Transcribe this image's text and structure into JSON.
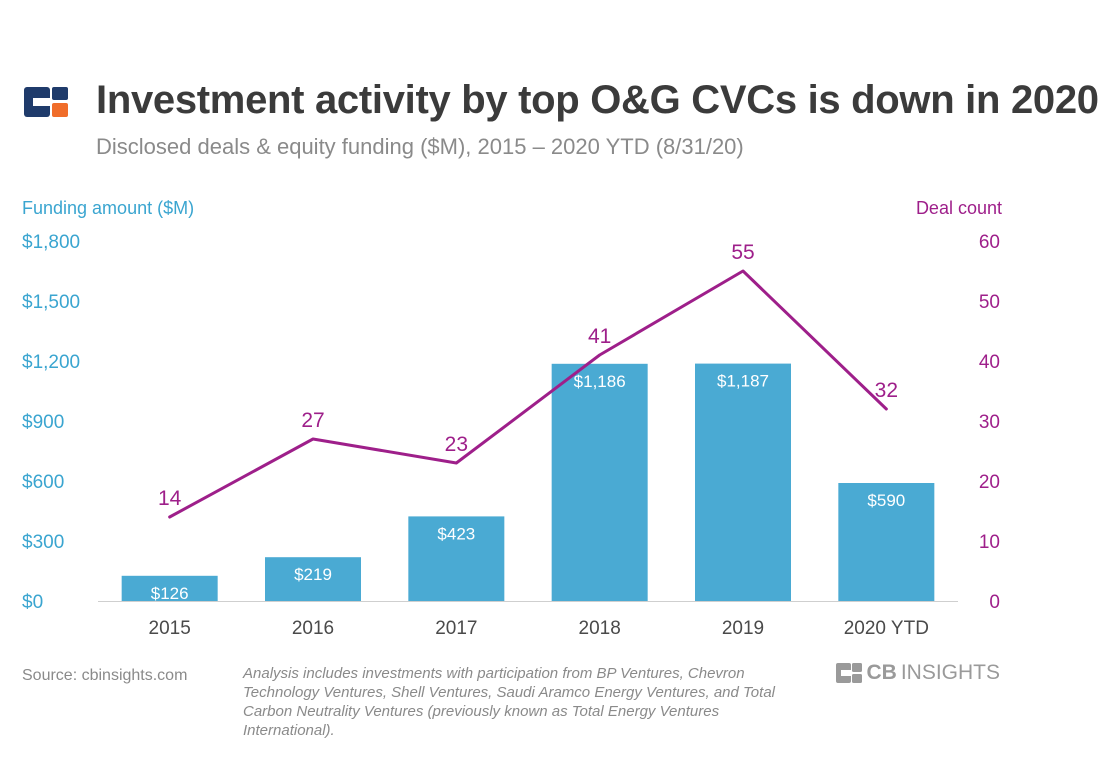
{
  "header": {
    "title": "Investment activity by top O&G CVCs is down in 2020",
    "subtitle": "Disclosed deals & equity funding ($M), 2015 – 2020 YTD (8/31/20)"
  },
  "footer": {
    "source": "Source: cbinsights.com",
    "note": "Analysis includes investments with participation from BP Ventures, Chevron Technology Ventures, Shell Ventures, Saudi Aramco Energy Ventures, and Total Carbon Neutrality Ventures (previously known as Total Energy Ventures International).",
    "brand_cb": "CB",
    "brand_insights": "INSIGHTS"
  },
  "colors": {
    "bar": "#4aaad3",
    "line": "#9e1f8a",
    "left_axis": "#3aa5d0",
    "right_axis": "#9e1f8a",
    "title": "#3b3b3b",
    "muted": "#8a8a8a",
    "logo_navy": "#1f3b6b",
    "logo_orange": "#f06d2a"
  },
  "chart_data": {
    "type": "bar",
    "categories": [
      "2015",
      "2016",
      "2017",
      "2018",
      "2019",
      "2020 YTD"
    ],
    "series": [
      {
        "name": "Funding amount ($M)",
        "type": "bar",
        "axis": "left",
        "values": [
          126,
          219,
          423,
          1186,
          1187,
          590
        ],
        "labels": [
          "$126",
          "$219",
          "$423",
          "$1,186",
          "$1,187",
          "$590"
        ]
      },
      {
        "name": "Deal count",
        "type": "line",
        "axis": "right",
        "values": [
          14,
          27,
          23,
          41,
          55,
          32
        ]
      }
    ],
    "y_left": {
      "label": "Funding amount ($M)",
      "range": [
        0,
        1800
      ],
      "ticks": [
        0,
        300,
        600,
        900,
        1200,
        1500,
        1800
      ],
      "tick_labels": [
        "$0",
        "$300",
        "$600",
        "$900",
        "$1,200",
        "$1,500",
        "$1,800"
      ]
    },
    "y_right": {
      "label": "Deal count",
      "range": [
        0,
        60
      ],
      "ticks": [
        0,
        10,
        20,
        30,
        40,
        50,
        60
      ],
      "tick_labels": [
        "0",
        "10",
        "20",
        "30",
        "40",
        "50",
        "60"
      ]
    },
    "grid": false,
    "legend": "none"
  }
}
